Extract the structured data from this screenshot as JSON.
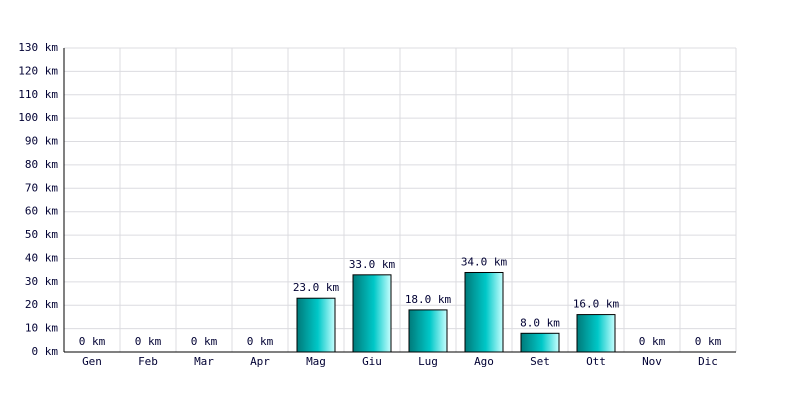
{
  "chart_data": {
    "type": "bar",
    "categories": [
      "Gen",
      "Feb",
      "Mar",
      "Apr",
      "Mag",
      "Giu",
      "Lug",
      "Ago",
      "Set",
      "Ott",
      "Nov",
      "Dic"
    ],
    "values": [
      0,
      0,
      0,
      0,
      23,
      33,
      18,
      34,
      8,
      16,
      0,
      0
    ],
    "value_labels": [
      "0 km",
      "0 km",
      "0 km",
      "0 km",
      "23.0 km",
      "33.0 km",
      "18.0 km",
      "34.0 km",
      "8.0 km",
      "16.0 km",
      "0 km",
      "0 km"
    ],
    "color": "#00c8c8",
    "ylim": [
      0,
      130
    ],
    "yticks": [
      {
        "value": 0,
        "label": "0 km"
      },
      {
        "value": 10,
        "label": "10 km"
      },
      {
        "value": 20,
        "label": "20 km"
      },
      {
        "value": 30,
        "label": "30 km"
      },
      {
        "value": 40,
        "label": "40 km"
      },
      {
        "value": 50,
        "label": "50 km"
      },
      {
        "value": 60,
        "label": "60 km"
      },
      {
        "value": 70,
        "label": "70 km"
      },
      {
        "value": 80,
        "label": "80 km"
      },
      {
        "value": 90,
        "label": "90 km"
      },
      {
        "value": 100,
        "label": "100 km"
      },
      {
        "value": 110,
        "label": "110 km"
      },
      {
        "value": 120,
        "label": "120 km"
      },
      {
        "value": 130,
        "label": "130 km"
      }
    ],
    "grid": true
  }
}
